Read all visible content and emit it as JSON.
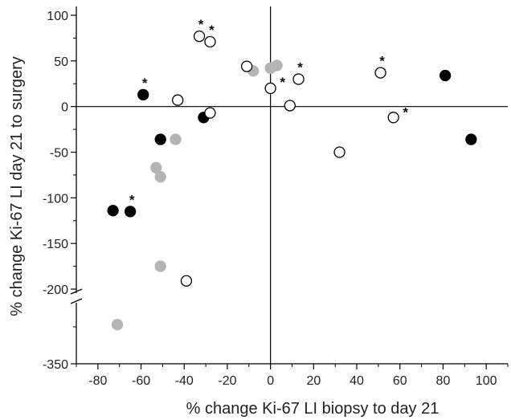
{
  "chart_data": {
    "type": "scatter",
    "xlabel": "% change Ki-67 LI biopsy to day 21",
    "ylabel": "% change Ki-67 LI day 21 to surgery",
    "xlim": [
      -90,
      110
    ],
    "ylim_upper": [
      -200,
      100
    ],
    "y_axis_break": {
      "below": -200,
      "resumes_at": -350
    },
    "x_ticks": [
      -80,
      -60,
      -40,
      -20,
      0,
      20,
      40,
      60,
      80,
      100
    ],
    "x_tick_labels": [
      "-80",
      "-60",
      "-40",
      "-20",
      "0",
      "20",
      "40",
      "60",
      "80",
      "100"
    ],
    "y_ticks": [
      100,
      50,
      0,
      -50,
      -100,
      -150,
      -200,
      -350
    ],
    "y_tick_labels": [
      "100",
      "50",
      "0",
      "-50",
      "-100",
      "-150",
      "-200",
      "-350"
    ],
    "reference_lines": {
      "x": 0,
      "y": 0
    },
    "grid": false,
    "legend": "none",
    "marker_styles": {
      "black": {
        "fill": "#000000",
        "stroke": "#000000"
      },
      "gray": {
        "fill": "#b4b4b4",
        "stroke": "#b4b4b4"
      },
      "open": {
        "fill": "#ffffff",
        "stroke": "#000000"
      }
    },
    "star_symbol": "*",
    "groups": [
      {
        "style": "black",
        "points": [
          {
            "x": -59,
            "y": 13,
            "star": true
          },
          {
            "x": -31,
            "y": -12
          },
          {
            "x": -51,
            "y": -36
          },
          {
            "x": -73,
            "y": -114
          },
          {
            "x": -65,
            "y": -115,
            "star": true
          },
          {
            "x": 81,
            "y": 34
          },
          {
            "x": 93,
            "y": -36
          }
        ]
      },
      {
        "style": "gray",
        "points": [
          {
            "x": -44,
            "y": -36
          },
          {
            "x": -53,
            "y": -67
          },
          {
            "x": -51,
            "y": -77
          },
          {
            "x": -51,
            "y": -175
          },
          {
            "x": -8,
            "y": 39
          },
          {
            "x": 0,
            "y": 42
          },
          {
            "x": 3,
            "y": 45
          },
          {
            "x": -71,
            "y": -300
          }
        ]
      },
      {
        "style": "open",
        "points": [
          {
            "x": -43,
            "y": 7
          },
          {
            "x": -33,
            "y": 77,
            "star": true
          },
          {
            "x": -28,
            "y": 71,
            "star": true
          },
          {
            "x": -28,
            "y": -7
          },
          {
            "x": -11,
            "y": 44
          },
          {
            "x": 0,
            "y": 20,
            "star": true
          },
          {
            "x": 9,
            "y": 1
          },
          {
            "x": 13,
            "y": 30,
            "star": true
          },
          {
            "x": 32,
            "y": -50
          },
          {
            "x": 51,
            "y": 37,
            "star": true
          },
          {
            "x": 57,
            "y": -12,
            "star": true
          },
          {
            "x": -39,
            "y": -191
          }
        ]
      }
    ]
  }
}
